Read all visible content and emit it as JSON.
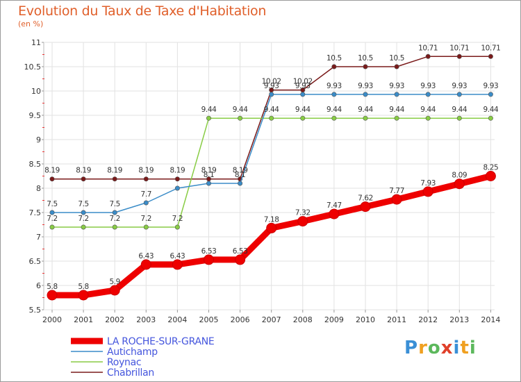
{
  "title": "Evolution du Taux de Taxe d'Habitation",
  "subtitle": "(en %)",
  "brand": "Proxiti",
  "brand_colors": [
    "#3a8fd6",
    "#f0a020",
    "#5cb85c",
    "#e0402a",
    "#3a8fd6",
    "#f0a020",
    "#5cb85c"
  ],
  "chart_data": {
    "type": "line",
    "x": [
      2000,
      2001,
      2002,
      2003,
      2004,
      2005,
      2006,
      2007,
      2008,
      2009,
      2010,
      2011,
      2012,
      2013,
      2014
    ],
    "ylim": [
      5.5,
      11
    ],
    "yticks": [
      5.5,
      6,
      6.5,
      7,
      7.5,
      8,
      8.5,
      9,
      9.5,
      10,
      10.5,
      11
    ],
    "ytick_labels": [
      "5.5",
      "6",
      "6.5",
      "7",
      "7.5",
      "8",
      "8.5",
      "9",
      "9.5",
      "10",
      "10.5",
      "11"
    ],
    "xtick_labels": [
      "2000",
      "2001",
      "2002",
      "2003",
      "2004",
      "2005",
      "2006",
      "2007",
      "2008",
      "2009",
      "2010",
      "2011",
      "2012",
      "2013",
      "2014"
    ],
    "grid": "horizontal",
    "legend_position": "bottom-left",
    "series": [
      {
        "name": "LA ROCHE-SUR-GRANE",
        "color": "#ee0000",
        "values": [
          5.8,
          5.8,
          5.9,
          6.43,
          6.43,
          6.53,
          6.53,
          7.18,
          7.32,
          7.47,
          7.62,
          7.77,
          7.93,
          8.09,
          8.25
        ],
        "labels": [
          "5.8",
          "5.8",
          "5.9",
          "6.43",
          "6.43",
          "6.53",
          "6.53",
          "7.18",
          "7.32",
          "7.47",
          "7.62",
          "7.77",
          "7.93",
          "8.09",
          "8.25"
        ]
      },
      {
        "name": "Autichamp",
        "color": "#3a8cc8",
        "values": [
          7.5,
          7.5,
          7.5,
          7.7,
          8.0,
          8.1,
          8.1,
          9.93,
          9.93,
          9.93,
          9.93,
          9.93,
          9.93,
          9.93,
          9.93
        ],
        "labels": [
          "7.5",
          "7.5",
          "7.5",
          "7.7",
          "",
          "8.1",
          "8.1",
          "9.93",
          "9.93",
          "9.93",
          "9.93",
          "9.93",
          "9.93",
          "9.93",
          "9.93"
        ]
      },
      {
        "name": "Roynac",
        "color": "#88cc44",
        "values": [
          7.2,
          7.2,
          7.2,
          7.2,
          7.2,
          9.44,
          9.44,
          9.44,
          9.44,
          9.44,
          9.44,
          9.44,
          9.44,
          9.44,
          9.44
        ],
        "labels": [
          "7.2",
          "7.2",
          "7.2",
          "7.2",
          "7.2",
          "9.44",
          "9.44",
          "9.44",
          "9.44",
          "9.44",
          "9.44",
          "9.44",
          "9.44",
          "9.44",
          "9.44"
        ]
      },
      {
        "name": "Chabrillan",
        "color": "#7a1a1a",
        "values": [
          8.19,
          8.19,
          8.19,
          8.19,
          8.19,
          8.19,
          8.19,
          10.02,
          10.02,
          10.5,
          10.5,
          10.5,
          10.71,
          10.71,
          10.71
        ],
        "labels": [
          "8.19",
          "8.19",
          "8.19",
          "8.19",
          "8.19",
          "8.19",
          "8.19",
          "10.02",
          "10.02",
          "10.5",
          "10.5",
          "10.5",
          "10.71",
          "10.71",
          "10.71"
        ]
      }
    ]
  }
}
